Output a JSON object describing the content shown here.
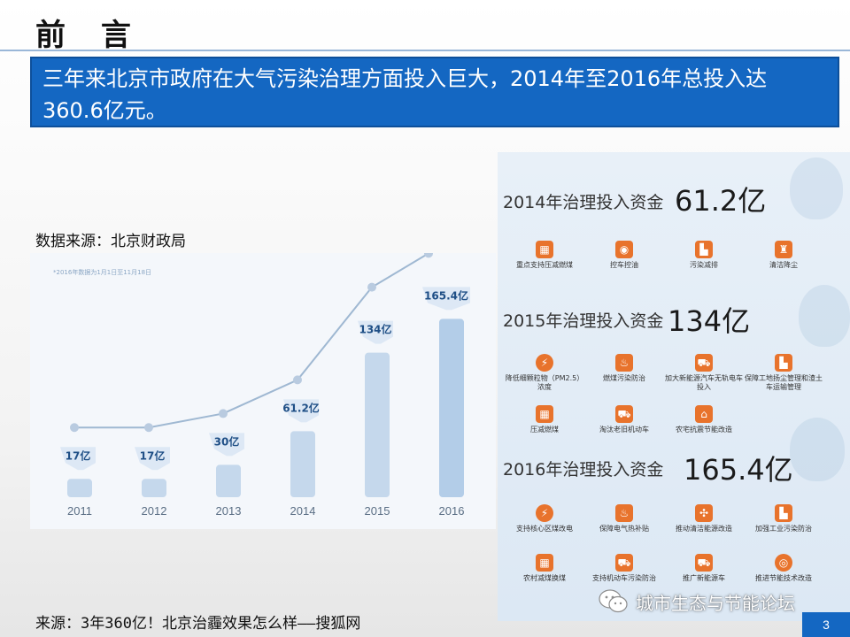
{
  "slide": {
    "title": "前 言",
    "banner_text": "三年来北京市政府在大气污染治理方面投入巨大，2014年至2016年总投入达360.6亿元。",
    "source_top": "数据来源：北京财政局",
    "source_bottom": "来源：3年360亿！北京治霾效果怎么样——搜狐网",
    "watermark": "城市生态与节能论坛",
    "page_number": "3"
  },
  "chart_data": {
    "type": "bar",
    "note": "*2016年数据为1月1日至11月18日",
    "categories": [
      "2011",
      "2012",
      "2013",
      "2014",
      "2015",
      "2016"
    ],
    "values": [
      17,
      17,
      30,
      61.2,
      134,
      165.4
    ],
    "value_labels": [
      "17亿",
      "17亿",
      "30亿",
      "61.2亿",
      "134亿",
      "165.4亿"
    ],
    "trend_line": true,
    "ylim": [
      0,
      210
    ],
    "colors": {
      "bar": "#c5d8ec",
      "bar_2016": "#b3cde8",
      "line": "#9fb8d2",
      "label": "#1f4f86"
    }
  },
  "info": {
    "years": [
      {
        "heading": "2014年治理投入资金",
        "amount": "61.2亿",
        "items": [
          {
            "icon": "coal-icon",
            "label": "重点支持压减燃煤"
          },
          {
            "icon": "car-control-icon",
            "label": "控车控油"
          },
          {
            "icon": "factory-icon",
            "label": "污染减排"
          },
          {
            "icon": "dust-icon",
            "label": "清洁降尘"
          }
        ]
      },
      {
        "heading": "2015年治理投入资金",
        "amount": "134亿",
        "items": [
          {
            "icon": "particle-icon",
            "label": "降低细颗粒物（PM2.5）浓度"
          },
          {
            "icon": "pollution-icon",
            "label": "燃煤污染防治"
          },
          {
            "icon": "ev-car-icon",
            "label": "加大新能源汽车无轨电车投入"
          },
          {
            "icon": "construction-icon",
            "label": "保障工地扬尘管理和渣土车运输管理"
          },
          {
            "icon": "coal-icon",
            "label": "压减燃煤"
          },
          {
            "icon": "truck-icon",
            "label": "淘汰老旧机动车"
          },
          {
            "icon": "house-icon",
            "label": "农宅抗震节能改造"
          }
        ]
      },
      {
        "heading": "2016年治理投入资金",
        "amount": "165.4亿",
        "items": [
          {
            "icon": "bolt-icon",
            "label": "支持核心区煤改电"
          },
          {
            "icon": "flame-icon",
            "label": "保障电气热补贴"
          },
          {
            "icon": "fan-icon",
            "label": "推动清洁能源改造"
          },
          {
            "icon": "industry-icon",
            "label": "加强工业污染防治"
          },
          {
            "icon": "coal-icon",
            "label": "农村减煤换煤"
          },
          {
            "icon": "truck-icon",
            "label": "支持机动车污染防治"
          },
          {
            "icon": "ev-car-icon",
            "label": "推广新能源车"
          },
          {
            "icon": "energy-tech-icon",
            "label": "推进节能技术改造"
          }
        ]
      }
    ]
  }
}
